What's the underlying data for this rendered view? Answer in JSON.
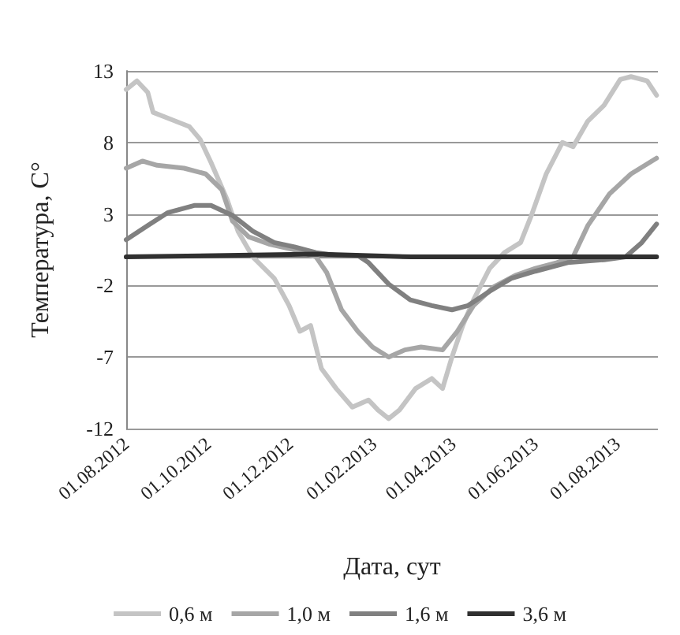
{
  "chart_data": {
    "type": "line",
    "xlabel": "Дата, сут",
    "ylabel": "Температура, С°",
    "xlim": [
      "2012-08-01",
      "2013-08-31"
    ],
    "xticks": [
      {
        "value": "2012-08-01",
        "label": "01.08.2012"
      },
      {
        "value": "2012-10-01",
        "label": "01.10.2012"
      },
      {
        "value": "2012-12-01",
        "label": "01.12.2012"
      },
      {
        "value": "2013-02-01",
        "label": "01.02.2013"
      },
      {
        "value": "2013-04-01",
        "label": "01.04.2013"
      },
      {
        "value": "2013-06-01",
        "label": "01.06.2013"
      },
      {
        "value": "2013-08-01",
        "label": "01.08.2013"
      }
    ],
    "ylim": [
      -12,
      13
    ],
    "yticks": [
      -12,
      -7,
      -2,
      3,
      8,
      13
    ],
    "grid": "y",
    "legend": "bottom",
    "marker": "none",
    "line_style": "solid",
    "series": [
      {
        "name": "0,6 м",
        "color": "#c4c4c4",
        "x": [
          "2012-08-01",
          "2012-08-09",
          "2012-08-17",
          "2012-08-21",
          "2012-09-01",
          "2012-09-17",
          "2012-09-25",
          "2012-10-03",
          "2012-10-15",
          "2012-10-23",
          "2012-11-03",
          "2012-11-19",
          "2012-11-30",
          "2012-12-08",
          "2012-12-16",
          "2012-12-24",
          "2013-01-04",
          "2013-01-16",
          "2013-01-28",
          "2013-02-04",
          "2013-02-12",
          "2013-02-20",
          "2013-03-04",
          "2013-03-16",
          "2013-03-24",
          "2013-03-31",
          "2013-04-08",
          "2013-04-16",
          "2013-04-28",
          "2013-05-09",
          "2013-05-21",
          "2013-05-29",
          "2013-06-09",
          "2013-06-21",
          "2013-06-29",
          "2013-07-10",
          "2013-07-22",
          "2013-08-03",
          "2013-08-11",
          "2013-08-23",
          "2013-08-30"
        ],
        "values": [
          11.7,
          12.3,
          11.5,
          10.1,
          9.7,
          9.1,
          8.2,
          6.6,
          4.0,
          1.8,
          0.0,
          -1.5,
          -3.4,
          -5.2,
          -4.8,
          -7.8,
          -9.2,
          -10.5,
          -10.0,
          -10.7,
          -11.3,
          -10.7,
          -9.2,
          -8.5,
          -9.2,
          -7.0,
          -4.8,
          -3.0,
          -0.8,
          0.3,
          1.0,
          2.9,
          5.8,
          8.0,
          7.7,
          9.5,
          10.6,
          12.4,
          12.6,
          12.3,
          11.3
        ]
      },
      {
        "name": "1,0 м",
        "color": "#a6a6a6",
        "x": [
          "2012-08-01",
          "2012-08-13",
          "2012-08-24",
          "2012-09-13",
          "2012-09-29",
          "2012-10-11",
          "2012-10-19",
          "2012-10-31",
          "2012-11-15",
          "2012-12-04",
          "2012-12-20",
          "2012-12-28",
          "2013-01-08",
          "2013-01-20",
          "2013-01-31",
          "2013-02-12",
          "2013-02-24",
          "2013-03-08",
          "2013-03-24",
          "2013-04-04",
          "2013-04-16",
          "2013-05-01",
          "2013-05-17",
          "2013-06-01",
          "2013-06-17",
          "2013-06-29",
          "2013-07-10",
          "2013-07-26",
          "2013-08-11",
          "2013-08-30"
        ],
        "values": [
          6.2,
          6.7,
          6.4,
          6.2,
          5.8,
          4.7,
          2.5,
          1.4,
          0.9,
          0.5,
          0.0,
          -1.1,
          -3.7,
          -5.2,
          -6.3,
          -7.0,
          -6.5,
          -6.3,
          -6.5,
          -5.2,
          -3.4,
          -2.1,
          -1.3,
          -0.8,
          -0.4,
          0.0,
          2.2,
          4.4,
          5.8,
          6.9
        ]
      },
      {
        "name": "1,6 м",
        "color": "#808080",
        "x": [
          "2012-08-01",
          "2012-08-17",
          "2012-09-01",
          "2012-09-21",
          "2012-10-03",
          "2012-10-19",
          "2012-11-03",
          "2012-11-19",
          "2012-12-04",
          "2012-12-20",
          "2013-01-04",
          "2013-01-20",
          "2013-01-28",
          "2013-02-12",
          "2013-02-28",
          "2013-03-16",
          "2013-03-31",
          "2013-04-12",
          "2013-04-28",
          "2013-05-14",
          "2013-06-01",
          "2013-06-25",
          "2013-07-22",
          "2013-08-07",
          "2013-08-19",
          "2013-08-30"
        ],
        "values": [
          1.2,
          2.2,
          3.1,
          3.6,
          3.6,
          2.9,
          1.8,
          1.0,
          0.7,
          0.3,
          0.1,
          0.1,
          -0.4,
          -1.9,
          -3.0,
          -3.4,
          -3.7,
          -3.4,
          -2.4,
          -1.5,
          -1.0,
          -0.4,
          -0.2,
          0.0,
          1.0,
          2.3
        ]
      },
      {
        "name": "3,6 м",
        "color": "#303030",
        "x": [
          "2012-08-01",
          "2012-12-20",
          "2013-03-01",
          "2013-08-30"
        ],
        "values": [
          0.0,
          0.2,
          0.0,
          0.0
        ]
      }
    ]
  }
}
